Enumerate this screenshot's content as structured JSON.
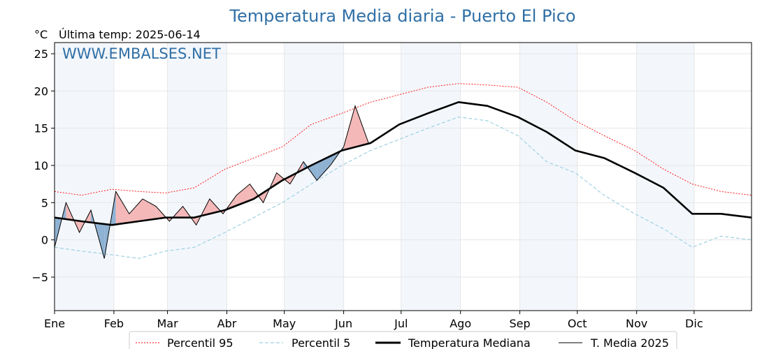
{
  "chart_data": {
    "type": "line",
    "title": "Temperatura Media diaria - Puerto El Pico",
    "unit_label": "°C",
    "last_temp_label": "Última temp: 2025-06-14",
    "watermark": "WWW.EMBALSES.NET",
    "ylim": [
      -9.5,
      26.5
    ],
    "yticks": [
      25,
      20,
      15,
      10,
      5,
      0,
      -5
    ],
    "ytick_labels": [
      "25",
      "20",
      "15",
      "10",
      "5",
      "0",
      "−5"
    ],
    "xlim": [
      1,
      365
    ],
    "months": [
      "Ene",
      "Feb",
      "Mar",
      "Abr",
      "May",
      "Jun",
      "Jul",
      "Ago",
      "Sep",
      "Oct",
      "Nov",
      "Dic"
    ],
    "month_start_days": [
      1,
      32,
      60,
      91,
      121,
      152,
      182,
      213,
      244,
      274,
      305,
      335
    ],
    "grid": true,
    "legend_position": "bottom",
    "colors": {
      "p95": "#ff0000",
      "p5": "#9fd0e2",
      "median": "#000000",
      "year": "#000000",
      "above_fill": "#f4b8b8",
      "above_fill_strong": "#e45555",
      "below_fill": "#8fb2d3",
      "below_fill_strong": "#1f4e79",
      "band": "#f3f7fc",
      "title": "#2f6fa6"
    },
    "series_x_days": [
      1,
      15,
      31,
      45,
      59,
      74,
      90,
      105,
      120,
      135,
      151,
      166,
      181,
      196,
      212,
      227,
      243,
      258,
      273,
      288,
      304,
      319,
      334,
      349,
      365
    ],
    "series": [
      {
        "name": "Percentil 95",
        "style": "dotted-red",
        "values": [
          6.5,
          6.0,
          6.8,
          6.5,
          6.3,
          7.0,
          9.5,
          11.0,
          12.5,
          15.5,
          17.0,
          18.5,
          19.5,
          20.5,
          21.0,
          20.8,
          20.5,
          18.5,
          16.0,
          14.0,
          12.0,
          9.5,
          7.5,
          6.5,
          6.0
        ]
      },
      {
        "name": "Percentil 5",
        "style": "dashed-lightblue",
        "values": [
          -1.0,
          -1.5,
          -2.0,
          -2.5,
          -1.5,
          -1.0,
          1.0,
          3.0,
          5.0,
          7.5,
          10.0,
          12.0,
          13.5,
          15.0,
          16.5,
          16.0,
          14.0,
          10.5,
          9.0,
          6.0,
          3.5,
          1.5,
          -1.0,
          0.5,
          0.0
        ]
      },
      {
        "name": "Temperatura Mediana",
        "style": "thick-black",
        "values": [
          3.0,
          2.5,
          2.0,
          2.5,
          3.0,
          3.0,
          4.0,
          5.5,
          8.0,
          10.0,
          12.0,
          13.0,
          15.5,
          17.0,
          18.5,
          18.0,
          16.5,
          14.5,
          12.0,
          11.0,
          9.0,
          7.0,
          3.5,
          3.5,
          3.0
        ]
      }
    ],
    "year_series": {
      "name": "T. Media 2025",
      "x_days": [
        1,
        7,
        14,
        20,
        27,
        33,
        40,
        47,
        54,
        61,
        68,
        75,
        82,
        89,
        96,
        103,
        110,
        117,
        124,
        131,
        138,
        145,
        152,
        158,
        165
      ],
      "values": [
        -1.0,
        5.0,
        1.0,
        4.0,
        -2.5,
        6.5,
        3.5,
        5.5,
        4.5,
        2.5,
        4.5,
        2.0,
        5.5,
        3.5,
        6.0,
        7.5,
        5.0,
        9.0,
        7.5,
        10.5,
        8.0,
        10.0,
        12.5,
        18.0,
        13.0
      ]
    }
  }
}
